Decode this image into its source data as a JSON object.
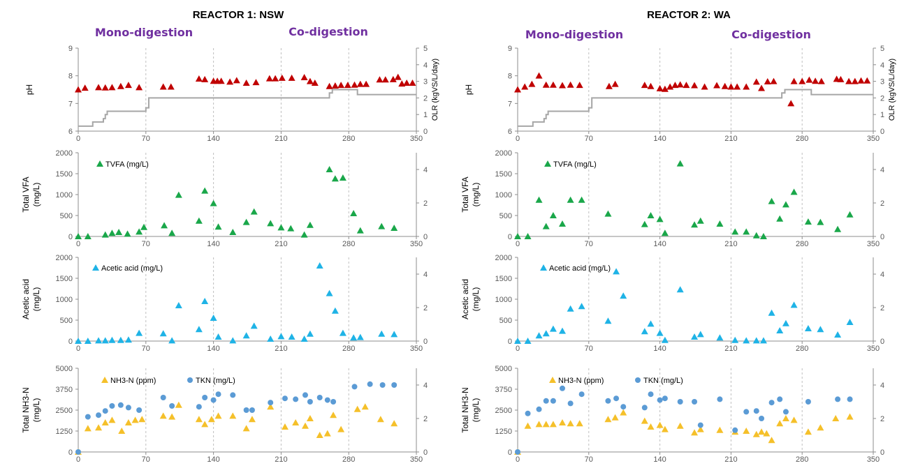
{
  "colors": {
    "ph": "#c00000",
    "olr": "#a6a6a6",
    "tvfa": "#1aa74a",
    "acetic": "#1fb3e6",
    "nh3": "#f5c02a",
    "tkn": "#5b9bd5",
    "phase": "#7030a0",
    "grid": "#bfbfbf",
    "axis": "#8c8c8c"
  },
  "phase_labels": {
    "mono": "Mono-digestion",
    "co": "Co-digestion"
  },
  "chart_data": [
    {
      "type": "scatter",
      "panel": "ph",
      "title": "REACTOR 1: NSW",
      "ylabel": "pH",
      "ylabel2": "OLR (kgVS/L/day)",
      "xlim": [
        0,
        350
      ],
      "ylim": [
        6,
        9
      ],
      "y2lim": [
        0,
        5
      ],
      "x_ticks": [
        "0",
        "70",
        "140",
        "210",
        "280",
        "350"
      ],
      "y_ticks": [
        "6",
        "7",
        "8",
        "9"
      ],
      "y2_ticks": [
        "0",
        "1",
        "2",
        "3",
        "4",
        "5"
      ],
      "series": [
        {
          "key": "ph",
          "x": [
            0,
            7,
            21,
            28,
            35,
            44,
            52,
            63,
            88,
            96,
            125,
            131,
            140,
            144,
            148,
            157,
            164,
            174,
            184,
            198,
            204,
            211,
            221,
            234,
            240,
            245,
            260,
            266,
            272,
            279,
            286,
            292,
            298,
            312,
            318,
            326,
            331,
            335,
            340,
            346
          ],
          "y": [
            7.5,
            7.56,
            7.58,
            7.57,
            7.58,
            7.62,
            7.66,
            7.58,
            7.6,
            7.6,
            7.89,
            7.87,
            7.81,
            7.81,
            7.81,
            7.78,
            7.83,
            7.74,
            7.76,
            7.9,
            7.9,
            7.92,
            7.92,
            7.94,
            7.8,
            7.74,
            7.62,
            7.64,
            7.66,
            7.66,
            7.67,
            7.7,
            7.7,
            7.86,
            7.86,
            7.87,
            7.95,
            7.71,
            7.74,
            7.74
          ]
        },
        {
          "key": "olr",
          "line": true,
          "x": [
            0,
            15,
            15,
            26,
            26,
            28,
            28,
            30,
            30,
            50,
            50,
            70,
            70,
            73,
            73,
            260,
            260,
            263,
            263,
            289,
            289,
            350
          ],
          "y2": [
            0.3,
            0.3,
            0.55,
            0.55,
            0.75,
            0.75,
            1.0,
            1.0,
            1.2,
            1.2,
            1.2,
            1.2,
            1.4,
            1.4,
            2.0,
            2.0,
            2.3,
            2.3,
            2.5,
            2.5,
            2.2,
            2.2
          ]
        }
      ]
    },
    {
      "type": "scatter",
      "panel": "tvfa",
      "ylabel": "Total VFA",
      "ylabel_unit": "(mg/L)",
      "xlim": [
        0,
        350
      ],
      "ylim": [
        0,
        2000
      ],
      "y2lim": [
        0,
        5
      ],
      "x_ticks": [
        "0",
        "70",
        "140",
        "210",
        "280",
        "350"
      ],
      "y_ticks": [
        "0",
        "500",
        "1000",
        "1500",
        "2000"
      ],
      "y2_ticks": [
        "0",
        "2",
        "4"
      ],
      "series": [
        {
          "key": "tvfa",
          "name": "TVFA (mg/L)",
          "x": [
            0,
            10,
            28,
            35,
            42,
            51,
            63,
            68,
            89,
            97,
            104,
            125,
            131,
            140,
            145,
            160,
            174,
            182,
            199,
            210,
            220,
            234,
            240,
            260,
            266,
            274,
            285,
            292,
            314,
            327
          ],
          "y": [
            0,
            0,
            40,
            80,
            100,
            60,
            110,
            220,
            260,
            80,
            990,
            370,
            1090,
            790,
            230,
            100,
            340,
            590,
            310,
            210,
            190,
            40,
            270,
            1600,
            1380,
            1400,
            550,
            140,
            240,
            200
          ]
        }
      ]
    },
    {
      "type": "scatter",
      "panel": "acetic",
      "ylabel": "Acetic acid",
      "ylabel_unit": "(mg/L)",
      "xlim": [
        0,
        350
      ],
      "ylim": [
        0,
        2000
      ],
      "y2lim": [
        0,
        5
      ],
      "x_ticks": [
        "0",
        "70",
        "140",
        "210",
        "280",
        "350"
      ],
      "y_ticks": [
        "0",
        "500",
        "1000",
        "1500",
        "2000"
      ],
      "y2_ticks": [
        "0",
        "2",
        "4"
      ],
      "series": [
        {
          "key": "acetic",
          "name": "Acetic acid (mg/L)",
          "x": [
            0,
            10,
            21,
            28,
            35,
            44,
            52,
            63,
            88,
            97,
            104,
            125,
            131,
            140,
            145,
            160,
            174,
            182,
            199,
            210,
            221,
            234,
            240,
            250,
            260,
            266,
            274,
            285,
            292,
            314,
            327
          ],
          "y": [
            0,
            0,
            10,
            10,
            20,
            20,
            30,
            190,
            180,
            10,
            850,
            280,
            950,
            550,
            100,
            10,
            130,
            360,
            50,
            110,
            100,
            50,
            170,
            1800,
            1140,
            720,
            190,
            80,
            90,
            170,
            160
          ]
        }
      ]
    },
    {
      "type": "scatter",
      "panel": "nh3",
      "ylabel": "Total NH3-N",
      "ylabel_unit": "(mg/L)",
      "xlim": [
        0,
        350
      ],
      "ylim": [
        0,
        5000
      ],
      "y2lim": [
        0,
        5
      ],
      "x_ticks": [
        "0",
        "70",
        "140",
        "210",
        "280",
        "350"
      ],
      "y_ticks": [
        "0",
        "1250",
        "2500",
        "3750",
        "5000"
      ],
      "y2_ticks": [
        "0",
        "2",
        "4"
      ],
      "series": [
        {
          "key": "nh3",
          "name": "NH3-N (ppm)",
          "x": [
            0,
            10,
            21,
            28,
            35,
            45,
            52,
            59,
            66,
            88,
            97,
            104,
            125,
            131,
            138,
            145,
            160,
            174,
            180,
            199,
            214,
            225,
            235,
            240,
            250,
            258,
            264,
            272,
            289,
            297,
            313,
            327
          ],
          "y": [
            0,
            1400,
            1450,
            1750,
            1900,
            1250,
            1750,
            1900,
            1950,
            2150,
            2100,
            2800,
            1950,
            1650,
            1950,
            2150,
            2150,
            1400,
            1950,
            2700,
            1500,
            1750,
            1550,
            2000,
            1000,
            1100,
            2200,
            1350,
            2550,
            2700,
            1950,
            1700
          ]
        },
        {
          "key": "tkn",
          "name": "TKN (mg/L)",
          "x": [
            0,
            10,
            21,
            28,
            35,
            44,
            52,
            63,
            88,
            97,
            125,
            131,
            140,
            145,
            160,
            174,
            180,
            199,
            214,
            225,
            235,
            240,
            250,
            258,
            264,
            286,
            302,
            315,
            327
          ],
          "y": [
            0,
            2100,
            2200,
            2450,
            2750,
            2800,
            2650,
            2500,
            3250,
            2750,
            2700,
            3250,
            3100,
            3450,
            3400,
            2500,
            2500,
            2950,
            3200,
            3150,
            3400,
            3000,
            3250,
            3100,
            3000,
            3900,
            4050,
            4000,
            4000
          ]
        }
      ]
    },
    {
      "type": "scatter",
      "panel": "ph",
      "title": "REACTOR 2: WA",
      "ylabel": "pH",
      "ylabel2": "OLR (kgVS/L/day)",
      "xlim": [
        0,
        350
      ],
      "ylim": [
        6,
        9
      ],
      "y2lim": [
        0,
        5
      ],
      "x_ticks": [
        "0",
        "70",
        "140",
        "210",
        "280",
        "350"
      ],
      "y_ticks": [
        "6",
        "7",
        "8",
        "9"
      ],
      "y2_ticks": [
        "0",
        "1",
        "2",
        "3",
        "4",
        "5"
      ],
      "series": [
        {
          "key": "ph",
          "x": [
            0,
            7,
            14,
            21,
            28,
            35,
            44,
            52,
            61,
            90,
            96,
            125,
            131,
            140,
            145,
            150,
            155,
            160,
            166,
            174,
            184,
            196,
            204,
            210,
            216,
            225,
            235,
            240,
            246,
            252,
            269,
            272,
            280,
            287,
            293,
            299,
            314,
            318,
            326,
            332,
            338,
            344
          ],
          "y": [
            7.5,
            7.6,
            7.7,
            8.0,
            7.67,
            7.67,
            7.65,
            7.67,
            7.66,
            7.62,
            7.7,
            7.66,
            7.62,
            7.54,
            7.52,
            7.6,
            7.66,
            7.68,
            7.66,
            7.65,
            7.6,
            7.65,
            7.62,
            7.6,
            7.6,
            7.6,
            7.78,
            7.55,
            7.79,
            7.8,
            7.0,
            7.8,
            7.8,
            7.85,
            7.81,
            7.8,
            7.88,
            7.87,
            7.8,
            7.8,
            7.82,
            7.82
          ]
        },
        {
          "key": "olr",
          "line": true,
          "x": [
            0,
            15,
            15,
            26,
            26,
            28,
            28,
            30,
            30,
            50,
            50,
            70,
            70,
            73,
            73,
            260,
            260,
            263,
            263,
            289,
            289,
            350
          ],
          "y2": [
            0.3,
            0.3,
            0.55,
            0.55,
            0.75,
            0.75,
            1.0,
            1.0,
            1.2,
            1.2,
            1.2,
            1.2,
            1.4,
            1.4,
            2.0,
            2.0,
            2.3,
            2.3,
            2.5,
            2.5,
            2.2,
            2.2
          ]
        }
      ]
    },
    {
      "type": "scatter",
      "panel": "tvfa",
      "ylabel": "Total VFA",
      "ylabel_unit": "(mg/L)",
      "xlim": [
        0,
        350
      ],
      "ylim": [
        0,
        2000
      ],
      "y2lim": [
        0,
        5
      ],
      "x_ticks": [
        "0",
        "70",
        "140",
        "210",
        "280",
        "350"
      ],
      "y_ticks": [
        "0",
        "500",
        "1000",
        "1500",
        "2000"
      ],
      "y2_ticks": [
        "0",
        "2",
        "4"
      ],
      "series": [
        {
          "key": "tvfa",
          "name": "TVFA (mg/L)",
          "x": [
            0,
            10,
            21,
            28,
            35,
            44,
            52,
            63,
            89,
            125,
            131,
            140,
            145,
            160,
            174,
            180,
            199,
            214,
            225,
            235,
            242,
            250,
            258,
            264,
            272,
            286,
            298,
            315,
            327
          ],
          "y": [
            0,
            0,
            870,
            240,
            500,
            300,
            870,
            870,
            540,
            290,
            500,
            410,
            80,
            1740,
            280,
            370,
            300,
            110,
            110,
            20,
            0,
            840,
            420,
            760,
            1060,
            350,
            340,
            170,
            520
          ]
        }
      ]
    },
    {
      "type": "scatter",
      "panel": "acetic",
      "ylabel": "Acetic acid",
      "ylabel_unit": "(mg/L)",
      "xlim": [
        0,
        350
      ],
      "ylim": [
        0,
        2000
      ],
      "y2lim": [
        0,
        5
      ],
      "x_ticks": [
        "0",
        "70",
        "140",
        "210",
        "280",
        "350"
      ],
      "y_ticks": [
        "0",
        "500",
        "1000",
        "1500",
        "2000"
      ],
      "y2_ticks": [
        "0",
        "2",
        "4"
      ],
      "series": [
        {
          "key": "acetic",
          "name": "Acetic acid (mg/L)",
          "x": [
            0,
            10,
            21,
            28,
            35,
            44,
            52,
            63,
            89,
            97,
            104,
            125,
            131,
            140,
            145,
            160,
            174,
            180,
            199,
            214,
            225,
            235,
            242,
            250,
            258,
            264,
            272,
            286,
            298,
            315,
            327
          ],
          "y": [
            0,
            0,
            130,
            180,
            290,
            240,
            770,
            830,
            480,
            1660,
            1080,
            230,
            410,
            190,
            20,
            1230,
            100,
            160,
            80,
            20,
            10,
            10,
            10,
            670,
            250,
            420,
            860,
            300,
            280,
            150,
            450
          ]
        }
      ]
    },
    {
      "type": "scatter",
      "panel": "nh3",
      "ylabel": "Total NH3-N",
      "ylabel_unit": "(mg/L)",
      "xlim": [
        0,
        350
      ],
      "ylim": [
        0,
        5000
      ],
      "y2lim": [
        0,
        5
      ],
      "x_ticks": [
        "0",
        "70",
        "140",
        "210",
        "280",
        "350"
      ],
      "y_ticks": [
        "0",
        "1250",
        "2500",
        "3750",
        "5000"
      ],
      "y2_ticks": [
        "0",
        "2",
        "4"
      ],
      "series": [
        {
          "key": "nh3",
          "name": "NH3-N (ppm)",
          "x": [
            0,
            10,
            21,
            28,
            35,
            44,
            52,
            61,
            89,
            96,
            104,
            125,
            131,
            140,
            145,
            160,
            174,
            180,
            199,
            214,
            225,
            235,
            240,
            245,
            250,
            258,
            264,
            272,
            286,
            298,
            313,
            327
          ],
          "y": [
            0,
            1550,
            1650,
            1650,
            1650,
            1750,
            1700,
            1700,
            1950,
            2050,
            2350,
            1850,
            1500,
            1600,
            1350,
            1550,
            1150,
            1350,
            1300,
            1200,
            1250,
            1050,
            1200,
            1100,
            700,
            1700,
            2000,
            1900,
            1200,
            1450,
            2000,
            2100
          ]
        },
        {
          "key": "tkn",
          "name": "TKN (mg/L)",
          "x": [
            0,
            10,
            21,
            28,
            35,
            44,
            52,
            63,
            89,
            97,
            104,
            125,
            131,
            140,
            145,
            160,
            174,
            180,
            199,
            214,
            225,
            235,
            240,
            250,
            258,
            264,
            286,
            315,
            327
          ],
          "y": [
            0,
            2300,
            2550,
            3050,
            3050,
            3800,
            2900,
            3450,
            3050,
            3200,
            2700,
            2650,
            3450,
            3100,
            3200,
            3000,
            3000,
            1600,
            3150,
            1300,
            2400,
            2450,
            2000,
            2950,
            3150,
            2400,
            3000,
            3150,
            3150
          ]
        }
      ]
    }
  ]
}
